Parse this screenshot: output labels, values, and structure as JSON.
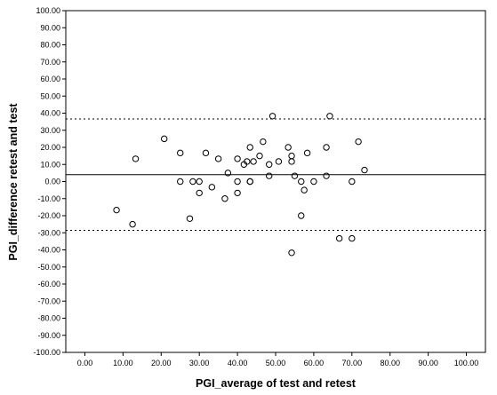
{
  "chart_data": {
    "type": "scatter",
    "title": "",
    "xlabel": "PGI_average of test and retest",
    "ylabel": "PGI_difference retest and test",
    "xlim": [
      -5,
      105
    ],
    "ylim": [
      -100,
      100
    ],
    "x_ticks": [
      0,
      10,
      20,
      30,
      40,
      50,
      60,
      70,
      80,
      90,
      100
    ],
    "y_ticks": [
      100,
      90,
      80,
      70,
      60,
      50,
      40,
      30,
      20,
      10,
      0,
      -10,
      -20,
      -30,
      -40,
      -50,
      -60,
      -70,
      -80,
      -90,
      -100
    ],
    "tick_format_decimals": 2,
    "grid": false,
    "reference_lines": [
      {
        "name": "mean difference",
        "value": 4.0,
        "style": "solid"
      },
      {
        "name": "upper limit of agreement",
        "value": 36.6,
        "style": "dotted"
      },
      {
        "name": "lower limit of agreement",
        "value": -28.6,
        "style": "dotted"
      }
    ],
    "points": [
      {
        "x": 8.3,
        "y": -16.7
      },
      {
        "x": 12.5,
        "y": -25.0
      },
      {
        "x": 13.3,
        "y": 13.3
      },
      {
        "x": 20.8,
        "y": 25.0
      },
      {
        "x": 25.0,
        "y": 16.7
      },
      {
        "x": 25.0,
        "y": 0.0
      },
      {
        "x": 27.5,
        "y": -21.7
      },
      {
        "x": 28.3,
        "y": 0.0
      },
      {
        "x": 30.0,
        "y": 0.0
      },
      {
        "x": 30.0,
        "y": -6.7
      },
      {
        "x": 31.7,
        "y": 16.7
      },
      {
        "x": 33.3,
        "y": -3.3
      },
      {
        "x": 35.0,
        "y": 13.3
      },
      {
        "x": 36.7,
        "y": -10.0
      },
      {
        "x": 37.5,
        "y": 5.0
      },
      {
        "x": 40.0,
        "y": 13.3
      },
      {
        "x": 40.0,
        "y": 0.0
      },
      {
        "x": 40.0,
        "y": -6.7
      },
      {
        "x": 41.7,
        "y": 10.0
      },
      {
        "x": 42.5,
        "y": 11.7
      },
      {
        "x": 43.3,
        "y": 20.0
      },
      {
        "x": 43.3,
        "y": 0.0
      },
      {
        "x": 43.3,
        "y": 0.0
      },
      {
        "x": 44.2,
        "y": 11.7
      },
      {
        "x": 45.8,
        "y": 15.0
      },
      {
        "x": 46.7,
        "y": 23.3
      },
      {
        "x": 48.3,
        "y": 10.0
      },
      {
        "x": 48.3,
        "y": 3.3
      },
      {
        "x": 49.2,
        "y": 38.3
      },
      {
        "x": 50.8,
        "y": 11.7
      },
      {
        "x": 53.3,
        "y": 20.0
      },
      {
        "x": 54.2,
        "y": 15.0
      },
      {
        "x": 54.2,
        "y": 11.7
      },
      {
        "x": 54.2,
        "y": -41.7
      },
      {
        "x": 55.0,
        "y": 3.3
      },
      {
        "x": 56.7,
        "y": 0.0
      },
      {
        "x": 56.7,
        "y": -20.0
      },
      {
        "x": 57.5,
        "y": -5.0
      },
      {
        "x": 58.3,
        "y": 16.7
      },
      {
        "x": 60.0,
        "y": 0.0
      },
      {
        "x": 63.3,
        "y": 20.0
      },
      {
        "x": 63.3,
        "y": 3.3
      },
      {
        "x": 64.2,
        "y": 38.3
      },
      {
        "x": 66.7,
        "y": -33.3
      },
      {
        "x": 70.0,
        "y": 0.0
      },
      {
        "x": 70.0,
        "y": -33.3
      },
      {
        "x": 71.7,
        "y": 23.3
      },
      {
        "x": 73.3,
        "y": 6.7
      }
    ]
  }
}
